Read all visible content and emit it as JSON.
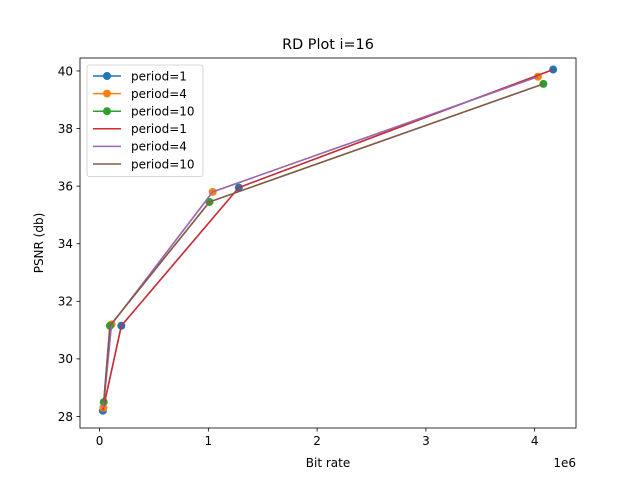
{
  "chart_data": {
    "type": "line",
    "title": "RD Plot i=16",
    "xlabel": "Bit rate",
    "ylabel": "PSNR (db)",
    "x_offset_label": "1e6",
    "xlim": [
      -180000,
      4380000
    ],
    "ylim": [
      27.6,
      40.45
    ],
    "x_ticks": [
      0,
      1000000,
      2000000,
      3000000,
      4000000
    ],
    "x_tick_labels": [
      "0",
      "1",
      "2",
      "3",
      "4"
    ],
    "y_ticks": [
      28,
      30,
      32,
      34,
      36,
      38,
      40
    ],
    "y_tick_labels": [
      "28",
      "30",
      "32",
      "34",
      "36",
      "38",
      "40"
    ],
    "grid": false,
    "legend_position": "top-left",
    "series": [
      {
        "name": "period=1",
        "style": "line-marker",
        "color": "#1f77b4",
        "x": [
          30000,
          200000,
          1280000,
          4170000
        ],
        "y": [
          28.2,
          31.15,
          35.95,
          40.05
        ]
      },
      {
        "name": "period=4",
        "style": "line-marker",
        "color": "#ff7f0e",
        "x": [
          35000,
          110000,
          1040000,
          4030000
        ],
        "y": [
          28.3,
          31.2,
          35.8,
          39.8
        ]
      },
      {
        "name": "period=10",
        "style": "line-marker",
        "color": "#2ca02c",
        "x": [
          38000,
          95000,
          1010000,
          4080000
        ],
        "y": [
          28.5,
          31.15,
          35.45,
          39.55
        ]
      },
      {
        "name": "period=1",
        "style": "line",
        "color": "#d62728",
        "x": [
          30000,
          200000,
          1280000,
          4170000
        ],
        "y": [
          28.2,
          31.15,
          35.95,
          40.05
        ]
      },
      {
        "name": "period=4",
        "style": "line",
        "color": "#9467bd",
        "x": [
          35000,
          110000,
          1040000,
          4030000
        ],
        "y": [
          28.3,
          31.2,
          35.8,
          39.8
        ]
      },
      {
        "name": "period=10",
        "style": "line",
        "color": "#8c564b",
        "x": [
          38000,
          95000,
          1010000,
          4080000
        ],
        "y": [
          28.5,
          31.15,
          35.45,
          39.55
        ]
      }
    ]
  }
}
